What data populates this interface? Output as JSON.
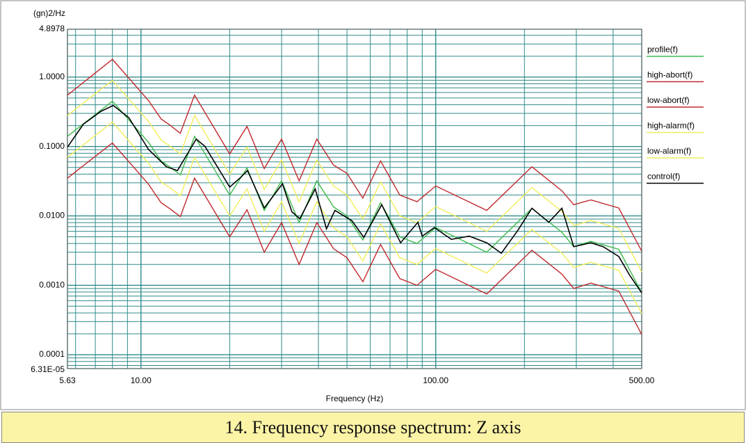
{
  "chart_data": {
    "type": "line",
    "log_x": true,
    "log_y": true,
    "grid": true,
    "minor_grid": true,
    "legend": "right",
    "y_label": "(gn)2/Hz",
    "x_label": "Frequency (Hz)",
    "caption": "14. Frequency response spectrum: Z axis",
    "xlim": [
      5.63,
      500
    ],
    "xticks": [
      {
        "value": 5.63,
        "label": "5.63"
      },
      {
        "value": 10,
        "label": "10.00"
      },
      {
        "value": 100,
        "label": "100.00"
      },
      {
        "value": 500,
        "label": "500.00"
      }
    ],
    "ylim": [
      6.31e-05,
      4.8978
    ],
    "yticks": [
      {
        "value": 6.31e-05,
        "label": "6.31E-05"
      },
      {
        "value": 0.0001,
        "label": "0.0001"
      },
      {
        "value": 0.001,
        "label": "0.0010"
      },
      {
        "value": 0.01,
        "label": "0.0100"
      },
      {
        "value": 0.1,
        "label": "0.1000"
      },
      {
        "value": 1,
        "label": "1.0000"
      },
      4.8978
    ],
    "x": [
      5.63,
      8,
      10.6,
      11.7,
      12.6,
      13.6,
      15.2,
      20,
      22.9,
      26.2,
      30,
      34.4,
      39.5,
      45,
      50,
      56.6,
      65,
      75.5,
      86.4,
      100,
      149,
      212,
      268,
      294,
      336,
      418,
      500
    ],
    "series": [
      {
        "name": "profile(f)",
        "color": "#3cb94a",
        "values": [
          0.14,
          0.45,
          0.115,
          0.062,
          0.05,
          0.039,
          0.14,
          0.02,
          0.049,
          0.012,
          0.032,
          0.008,
          0.032,
          0.0135,
          0.01,
          0.0045,
          0.0155,
          0.005,
          0.004,
          0.0068,
          0.003,
          0.0128,
          0.0058,
          0.0036,
          0.0043,
          0.0033,
          0.00078
        ]
      },
      {
        "name": "high-abort(f)",
        "color": "#c0282c",
        "values": [
          0.55,
          1.8,
          0.46,
          0.25,
          0.2,
          0.155,
          0.55,
          0.078,
          0.195,
          0.048,
          0.128,
          0.032,
          0.128,
          0.054,
          0.041,
          0.018,
          0.062,
          0.02,
          0.016,
          0.027,
          0.012,
          0.051,
          0.023,
          0.0145,
          0.017,
          0.013,
          0.0031
        ]
      },
      {
        "name": "low-abort(f)",
        "color": "#c0282c",
        "values": [
          0.035,
          0.1125,
          0.02875,
          0.0155,
          0.0125,
          0.00975,
          0.035,
          0.005,
          0.01225,
          0.003,
          0.008,
          0.002,
          0.008,
          0.003375,
          0.0025,
          0.001125,
          0.003875,
          0.00125,
          0.001,
          0.0017,
          0.00075,
          0.0032,
          0.00145,
          0.0009,
          0.001075,
          0.000825,
          0.000195
        ]
      },
      {
        "name": "high-alarm(f)",
        "color": "#f2ee5a",
        "values": [
          0.28,
          0.9,
          0.23,
          0.124,
          0.1,
          0.078,
          0.28,
          0.04,
          0.098,
          0.024,
          0.064,
          0.016,
          0.064,
          0.027,
          0.02,
          0.009,
          0.031,
          0.01,
          0.008,
          0.0136,
          0.006,
          0.0256,
          0.0116,
          0.0072,
          0.0086,
          0.0066,
          0.00156
        ]
      },
      {
        "name": "low-alarm(f)",
        "color": "#f2ee5a",
        "values": [
          0.07,
          0.225,
          0.0575,
          0.031,
          0.025,
          0.0195,
          0.07,
          0.01,
          0.0245,
          0.006,
          0.016,
          0.004,
          0.016,
          0.00675,
          0.005,
          0.00225,
          0.00775,
          0.0025,
          0.002,
          0.0034,
          0.0015,
          0.0064,
          0.0029,
          0.0018,
          0.00215,
          0.00165,
          0.00039
        ]
      },
      {
        "name": "control(f)",
        "color": "#000000",
        "x": [
          5.63,
          6.38,
          7.3,
          8.05,
          9.1,
          10.6,
          12.2,
          13.3,
          15.4,
          16.5,
          20,
          21.8,
          23,
          26.2,
          30.2,
          32.5,
          34.6,
          39,
          42.6,
          45.5,
          52,
          57,
          65.6,
          76,
          87,
          90,
          99,
          113,
          130,
          149,
          167,
          190,
          212,
          242,
          268,
          294,
          336,
          370,
          418,
          455,
          500
        ],
        "values": [
          0.098,
          0.21,
          0.32,
          0.39,
          0.26,
          0.091,
          0.051,
          0.045,
          0.128,
          0.1,
          0.026,
          0.036,
          0.045,
          0.013,
          0.029,
          0.0115,
          0.0091,
          0.0245,
          0.0065,
          0.012,
          0.0085,
          0.0049,
          0.0145,
          0.0041,
          0.0081,
          0.0051,
          0.0068,
          0.0046,
          0.0051,
          0.0041,
          0.0029,
          0.0062,
          0.0129,
          0.0081,
          0.0129,
          0.0036,
          0.0041,
          0.0036,
          0.0026,
          0.0014,
          0.00078
        ]
      }
    ]
  }
}
